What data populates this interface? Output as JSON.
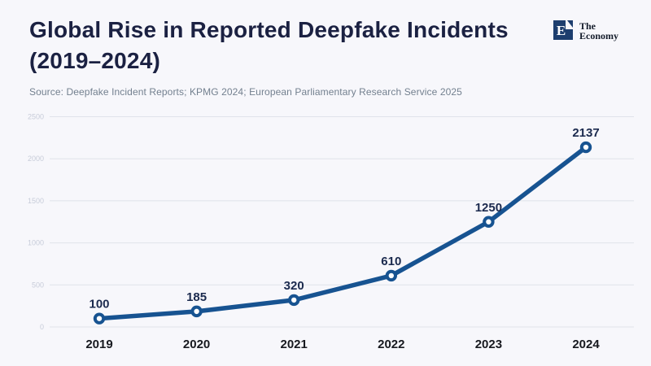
{
  "header": {
    "title_line1": "Global Rise in Reported Deepfake Incidents",
    "title_line2": "(2019–2024)",
    "source": "Source: Deepfake Incident Reports; KPMG 2024; European Parliamentary Research Service 2025"
  },
  "logo": {
    "letter": "E",
    "name_line1": "The",
    "name_line2": "Economy"
  },
  "colors": {
    "background": "#f7f7fb",
    "title": "#1b2142",
    "source_text": "#73808f",
    "gridline": "#e0e3ea",
    "ytick_label": "#c7ccd9",
    "xtick_label": "#17191f",
    "value_label": "#1b2a4e",
    "line": "#175391",
    "marker_fill": "#ffffff",
    "logo_square": "#1d3e6e"
  },
  "chart_data": {
    "type": "line",
    "title": "Global Rise in Reported Deepfake Incidents (2019–2024)",
    "categories": [
      "2019",
      "2020",
      "2021",
      "2022",
      "2023",
      "2024"
    ],
    "values": [
      100,
      185,
      320,
      610,
      1250,
      2137
    ],
    "data_labels": [
      "100",
      "185",
      "320",
      "610",
      "1250",
      "2137"
    ],
    "xlabel": "",
    "ylabel": "",
    "ylim": [
      0,
      2500
    ],
    "yticks": [
      0,
      500,
      1000,
      1500,
      2000,
      2500
    ],
    "grid": true,
    "legend": false,
    "marker": "open-circle"
  }
}
